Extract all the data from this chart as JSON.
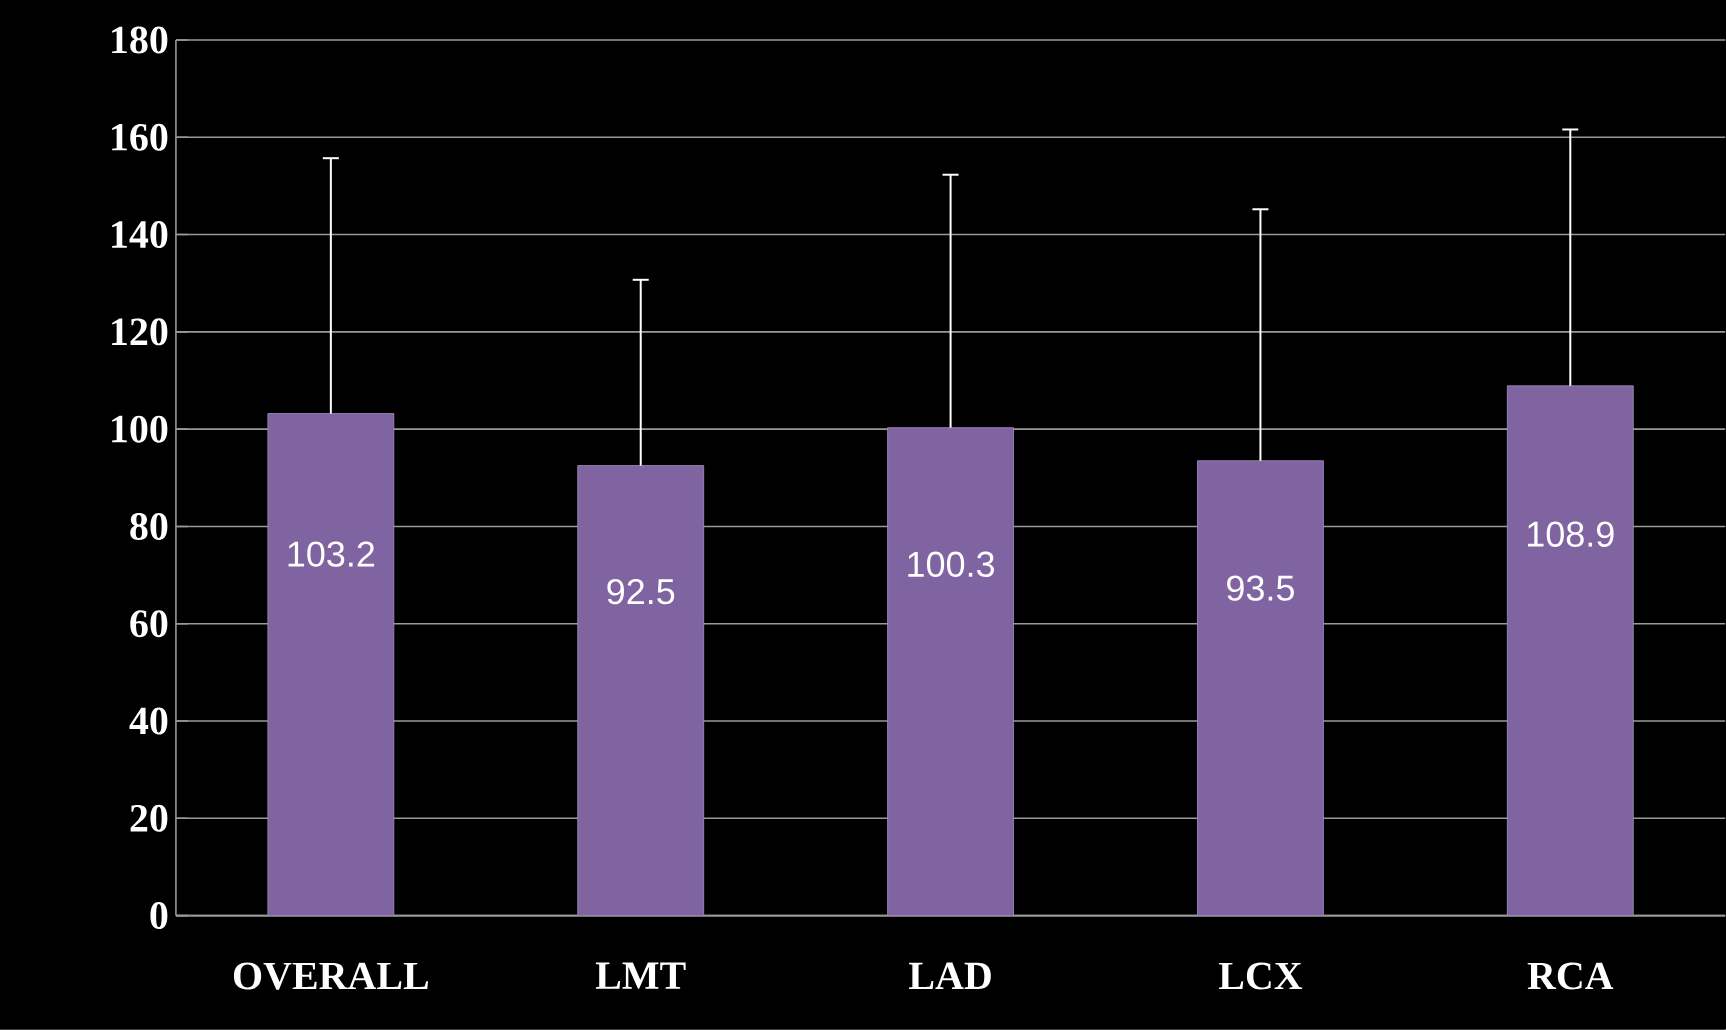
{
  "chart_data": {
    "type": "bar",
    "categories": [
      "OVERALL",
      "LMT",
      "LAD",
      "LCX",
      "RCA"
    ],
    "values": [
      103.2,
      92.5,
      100.3,
      93.5,
      108.9
    ],
    "errors": [
      52.5,
      38.2,
      52.0,
      51.7,
      52.7
    ],
    "color": "#8064a2",
    "data_labels": true,
    "ylim": [
      0,
      180
    ],
    "yticks": [
      0,
      20,
      40,
      60,
      80,
      100,
      120,
      140,
      160,
      180
    ],
    "grid": "y"
  }
}
